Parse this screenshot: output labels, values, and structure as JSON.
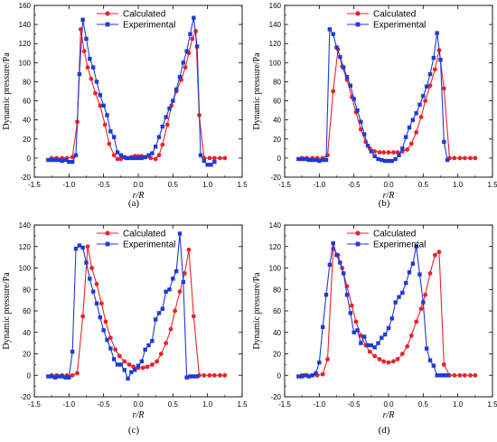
{
  "series_colors": {
    "Calculated": "#e8232b",
    "Experimental": "#1f3ad6"
  },
  "chart_data": [
    {
      "type": "line",
      "panel_label": "(a)",
      "panel_letter": "a",
      "xlabel": "r/R",
      "ylabel": "Dynamic pressure/Pa",
      "xlim": [
        -1.5,
        1.5
      ],
      "ylim": [
        -20,
        160
      ],
      "xticks": [
        -1.5,
        -1.0,
        -0.5,
        0.0,
        0.5,
        1.0,
        1.5
      ],
      "xtick_labels": [
        "-1.5",
        "-1.0",
        "-0.5",
        "0.0",
        "0.5",
        "1.0",
        "1.5"
      ],
      "yticks": [
        -20,
        0,
        20,
        40,
        60,
        80,
        100,
        120,
        140,
        160
      ],
      "ytick_labels": [
        "-20",
        "0",
        "20",
        "40",
        "60",
        "80",
        "100",
        "120",
        "140",
        "160"
      ],
      "legend": "top-center",
      "grid": false,
      "series": [
        {
          "name": "Calculated",
          "marker": "circle",
          "x": [
            -1.25,
            -1.18,
            -1.1,
            -1.03,
            -0.95,
            -0.88,
            -0.83,
            -0.78,
            -0.73,
            -0.68,
            -0.62,
            -0.55,
            -0.48,
            -0.42,
            -0.35,
            -0.3,
            -0.25,
            -0.18,
            -0.1,
            -0.05,
            0.0,
            0.05,
            0.1,
            0.18,
            0.25,
            0.3,
            0.35,
            0.42,
            0.48,
            0.55,
            0.62,
            0.68,
            0.73,
            0.78,
            0.83,
            0.88,
            0.95,
            1.03,
            1.1,
            1.18,
            1.25
          ],
          "y": [
            0,
            0,
            0,
            0,
            1,
            38,
            135,
            112,
            95,
            83,
            68,
            55,
            35,
            15,
            3,
            -1,
            -1,
            0,
            1,
            2,
            2,
            2,
            1,
            0,
            -1,
            3,
            14,
            35,
            55,
            70,
            82,
            95,
            110,
            125,
            133,
            45,
            0,
            0,
            0,
            0,
            0
          ]
        },
        {
          "name": "Experimental",
          "marker": "square",
          "x": [
            -1.3,
            -1.25,
            -1.2,
            -1.15,
            -1.1,
            -1.05,
            -1.0,
            -0.95,
            -0.9,
            -0.85,
            -0.8,
            -0.75,
            -0.7,
            -0.65,
            -0.6,
            -0.55,
            -0.5,
            -0.45,
            -0.4,
            -0.35,
            -0.3,
            -0.25,
            -0.2,
            -0.15,
            -0.1,
            -0.05,
            0.0,
            0.05,
            0.1,
            0.15,
            0.2,
            0.25,
            0.3,
            0.35,
            0.4,
            0.45,
            0.5,
            0.55,
            0.6,
            0.65,
            0.7,
            0.75,
            0.8,
            0.85,
            0.9,
            0.95,
            1.0,
            1.05,
            1.1
          ],
          "y": [
            -2,
            -2,
            -2,
            -2,
            -3,
            -2,
            -4,
            -4,
            3,
            88,
            145,
            125,
            104,
            95,
            80,
            66,
            55,
            45,
            28,
            22,
            6,
            3,
            1,
            0,
            0,
            0,
            0,
            0,
            1,
            3,
            5,
            12,
            22,
            33,
            43,
            52,
            60,
            72,
            85,
            100,
            112,
            130,
            147,
            117,
            3,
            -3,
            -7,
            -7,
            -4
          ]
        }
      ]
    },
    {
      "type": "line",
      "panel_label": "(b)",
      "panel_letter": "b",
      "xlabel": "r/R",
      "ylabel": "Dynamic pressure/Pa",
      "xlim": [
        -1.5,
        1.5
      ],
      "ylim": [
        -20,
        160
      ],
      "xticks": [
        -1.5,
        -1.0,
        -0.5,
        0.0,
        0.5,
        1.0,
        1.5
      ],
      "xtick_labels": [
        "-1.5",
        "-1.0",
        "-0.5",
        "0.0",
        "0.5",
        "1.0",
        "1.5"
      ],
      "yticks": [
        -20,
        0,
        20,
        40,
        60,
        80,
        100,
        120,
        140,
        160
      ],
      "ytick_labels": [
        "-20",
        "0",
        "20",
        "40",
        "60",
        "80",
        "100",
        "120",
        "140",
        "160"
      ],
      "legend": "top-center",
      "grid": false,
      "series": [
        {
          "name": "Calculated",
          "marker": "circle",
          "x": [
            -1.25,
            -1.18,
            -1.1,
            -1.03,
            -0.95,
            -0.88,
            -0.8,
            -0.73,
            -0.67,
            -0.6,
            -0.53,
            -0.47,
            -0.4,
            -0.33,
            -0.27,
            -0.2,
            -0.13,
            -0.07,
            0.0,
            0.07,
            0.13,
            0.2,
            0.27,
            0.33,
            0.4,
            0.47,
            0.53,
            0.6,
            0.67,
            0.73,
            0.8,
            0.88,
            0.95,
            1.03,
            1.1,
            1.18,
            1.25
          ],
          "y": [
            0,
            0,
            0,
            0,
            0,
            3,
            70,
            114,
            96,
            82,
            64,
            48,
            30,
            17,
            10,
            7,
            6,
            6,
            6,
            6,
            6,
            7,
            9,
            15,
            27,
            43,
            60,
            76,
            93,
            113,
            73,
            0,
            0,
            0,
            0,
            0,
            0
          ]
        },
        {
          "name": "Experimental",
          "marker": "square",
          "x": [
            -1.3,
            -1.25,
            -1.2,
            -1.15,
            -1.1,
            -1.05,
            -1.0,
            -0.95,
            -0.9,
            -0.85,
            -0.8,
            -0.75,
            -0.7,
            -0.65,
            -0.6,
            -0.55,
            -0.5,
            -0.45,
            -0.4,
            -0.35,
            -0.3,
            -0.25,
            -0.2,
            -0.15,
            -0.1,
            -0.05,
            0.0,
            0.05,
            0.1,
            0.15,
            0.2,
            0.25,
            0.3,
            0.35,
            0.4,
            0.45,
            0.5,
            0.55,
            0.6,
            0.65,
            0.7,
            0.75,
            0.8,
            0.85
          ],
          "y": [
            -1,
            -1,
            -1,
            -2,
            -2,
            -2,
            -3,
            -2,
            -2,
            135,
            130,
            116,
            106,
            95,
            85,
            76,
            62,
            50,
            38,
            25,
            13,
            7,
            2,
            -1,
            -2,
            -3,
            -3,
            -3,
            -1,
            3,
            10,
            22,
            32,
            40,
            47,
            56,
            65,
            75,
            88,
            105,
            131,
            103,
            17,
            -2
          ]
        }
      ]
    },
    {
      "type": "line",
      "panel_label": "(c)",
      "panel_letter": "c",
      "xlabel": "r/R",
      "ylabel": "Dynamic pressure/Pa",
      "xlim": [
        -1.5,
        1.5
      ],
      "ylim": [
        -20,
        140
      ],
      "xticks": [
        -1.5,
        -1.0,
        -0.5,
        0.0,
        0.5,
        1.0,
        1.5
      ],
      "xtick_labels": [
        "-1.5",
        "-1.0",
        "-0.5",
        "0.0",
        "0.5",
        "1.0",
        "1.5"
      ],
      "yticks": [
        -20,
        0,
        20,
        40,
        60,
        80,
        100,
        120,
        140
      ],
      "ytick_labels": [
        "-20",
        "0",
        "20",
        "40",
        "60",
        "80",
        "100",
        "120",
        "140"
      ],
      "legend": "top-center",
      "grid": false,
      "series": [
        {
          "name": "Calculated",
          "marker": "circle",
          "x": [
            -1.25,
            -1.18,
            -1.1,
            -1.03,
            -0.95,
            -0.88,
            -0.8,
            -0.73,
            -0.67,
            -0.6,
            -0.53,
            -0.47,
            -0.4,
            -0.33,
            -0.27,
            -0.2,
            -0.13,
            -0.07,
            0.0,
            0.07,
            0.13,
            0.2,
            0.27,
            0.33,
            0.4,
            0.47,
            0.53,
            0.6,
            0.67,
            0.73,
            0.8,
            0.88,
            0.95,
            1.03,
            1.1,
            1.18,
            1.25
          ],
          "y": [
            0,
            0,
            0,
            0,
            0,
            2,
            55,
            120,
            100,
            85,
            67,
            50,
            35,
            24,
            18,
            13,
            10,
            8,
            7,
            7,
            8,
            10,
            13,
            20,
            30,
            43,
            60,
            78,
            95,
            117,
            55,
            0,
            0,
            0,
            0,
            0,
            0
          ]
        },
        {
          "name": "Experimental",
          "marker": "square",
          "x": [
            -1.3,
            -1.25,
            -1.2,
            -1.15,
            -1.1,
            -1.05,
            -1.0,
            -0.95,
            -0.9,
            -0.85,
            -0.8,
            -0.75,
            -0.7,
            -0.65,
            -0.6,
            -0.55,
            -0.5,
            -0.45,
            -0.4,
            -0.35,
            -0.3,
            -0.25,
            -0.2,
            -0.15,
            -0.1,
            -0.05,
            0.0,
            0.05,
            0.1,
            0.15,
            0.2,
            0.25,
            0.3,
            0.35,
            0.4,
            0.45,
            0.5,
            0.55,
            0.6,
            0.65,
            0.7,
            0.75,
            0.8,
            0.85
          ],
          "y": [
            -1,
            -1,
            -2,
            -1,
            -1,
            -2,
            -2,
            22,
            118,
            121,
            119,
            105,
            90,
            78,
            67,
            54,
            42,
            33,
            25,
            15,
            10,
            10,
            5,
            -3,
            3,
            5,
            9,
            13,
            24,
            28,
            32,
            52,
            58,
            62,
            78,
            80,
            90,
            97,
            132,
            87,
            -2,
            -1,
            -1,
            -1
          ]
        }
      ]
    },
    {
      "type": "line",
      "panel_label": "(d)",
      "panel_letter": "d",
      "xlabel": "r/R",
      "ylabel": "Dynamic pressure/Pa",
      "xlim": [
        -1.5,
        1.5
      ],
      "ylim": [
        -20,
        140
      ],
      "xticks": [
        -1.5,
        -1.0,
        -0.5,
        0.0,
        0.5,
        1.0,
        1.5
      ],
      "xtick_labels": [
        "-1.5",
        "-1.0",
        "-0.5",
        "0.0",
        "0.5",
        "1.0",
        "1.5"
      ],
      "yticks": [
        -20,
        0,
        20,
        40,
        60,
        80,
        100,
        120,
        140
      ],
      "ytick_labels": [
        "-20",
        "0",
        "20",
        "40",
        "60",
        "80",
        "100",
        "120",
        "140"
      ],
      "legend": "top-center",
      "grid": false,
      "series": [
        {
          "name": "Calculated",
          "marker": "circle",
          "x": [
            -1.25,
            -1.18,
            -1.1,
            -1.03,
            -0.95,
            -0.88,
            -0.8,
            -0.73,
            -0.67,
            -0.6,
            -0.53,
            -0.47,
            -0.4,
            -0.33,
            -0.27,
            -0.2,
            -0.13,
            -0.07,
            0.0,
            0.07,
            0.13,
            0.2,
            0.27,
            0.33,
            0.4,
            0.47,
            0.53,
            0.6,
            0.67,
            0.73,
            0.8,
            0.88,
            0.95,
            1.03,
            1.1,
            1.18,
            1.25
          ],
          "y": [
            0,
            0,
            0,
            0,
            1,
            15,
            118,
            112,
            100,
            83,
            65,
            50,
            37,
            28,
            22,
            18,
            15,
            13,
            12,
            13,
            15,
            20,
            27,
            37,
            50,
            62,
            75,
            95,
            112,
            115,
            10,
            0,
            0,
            0,
            0,
            0,
            0
          ]
        },
        {
          "name": "Experimental",
          "marker": "square",
          "x": [
            -1.3,
            -1.25,
            -1.2,
            -1.15,
            -1.1,
            -1.05,
            -1.0,
            -0.95,
            -0.9,
            -0.85,
            -0.8,
            -0.75,
            -0.7,
            -0.65,
            -0.6,
            -0.55,
            -0.5,
            -0.45,
            -0.4,
            -0.35,
            -0.3,
            -0.25,
            -0.2,
            -0.15,
            -0.1,
            -0.05,
            0.0,
            0.05,
            0.1,
            0.15,
            0.2,
            0.25,
            0.3,
            0.35,
            0.4,
            0.45,
            0.5,
            0.55,
            0.6,
            0.65,
            0.7,
            0.75,
            0.8,
            0.85
          ],
          "y": [
            -1,
            -1,
            0,
            -1,
            0,
            2,
            12,
            45,
            75,
            103,
            123,
            112,
            105,
            95,
            75,
            58,
            40,
            42,
            30,
            36,
            28,
            28,
            26,
            30,
            35,
            38,
            44,
            53,
            68,
            73,
            77,
            86,
            96,
            104,
            120,
            94,
            68,
            25,
            14,
            9,
            0,
            0,
            0,
            0
          ]
        }
      ]
    }
  ]
}
